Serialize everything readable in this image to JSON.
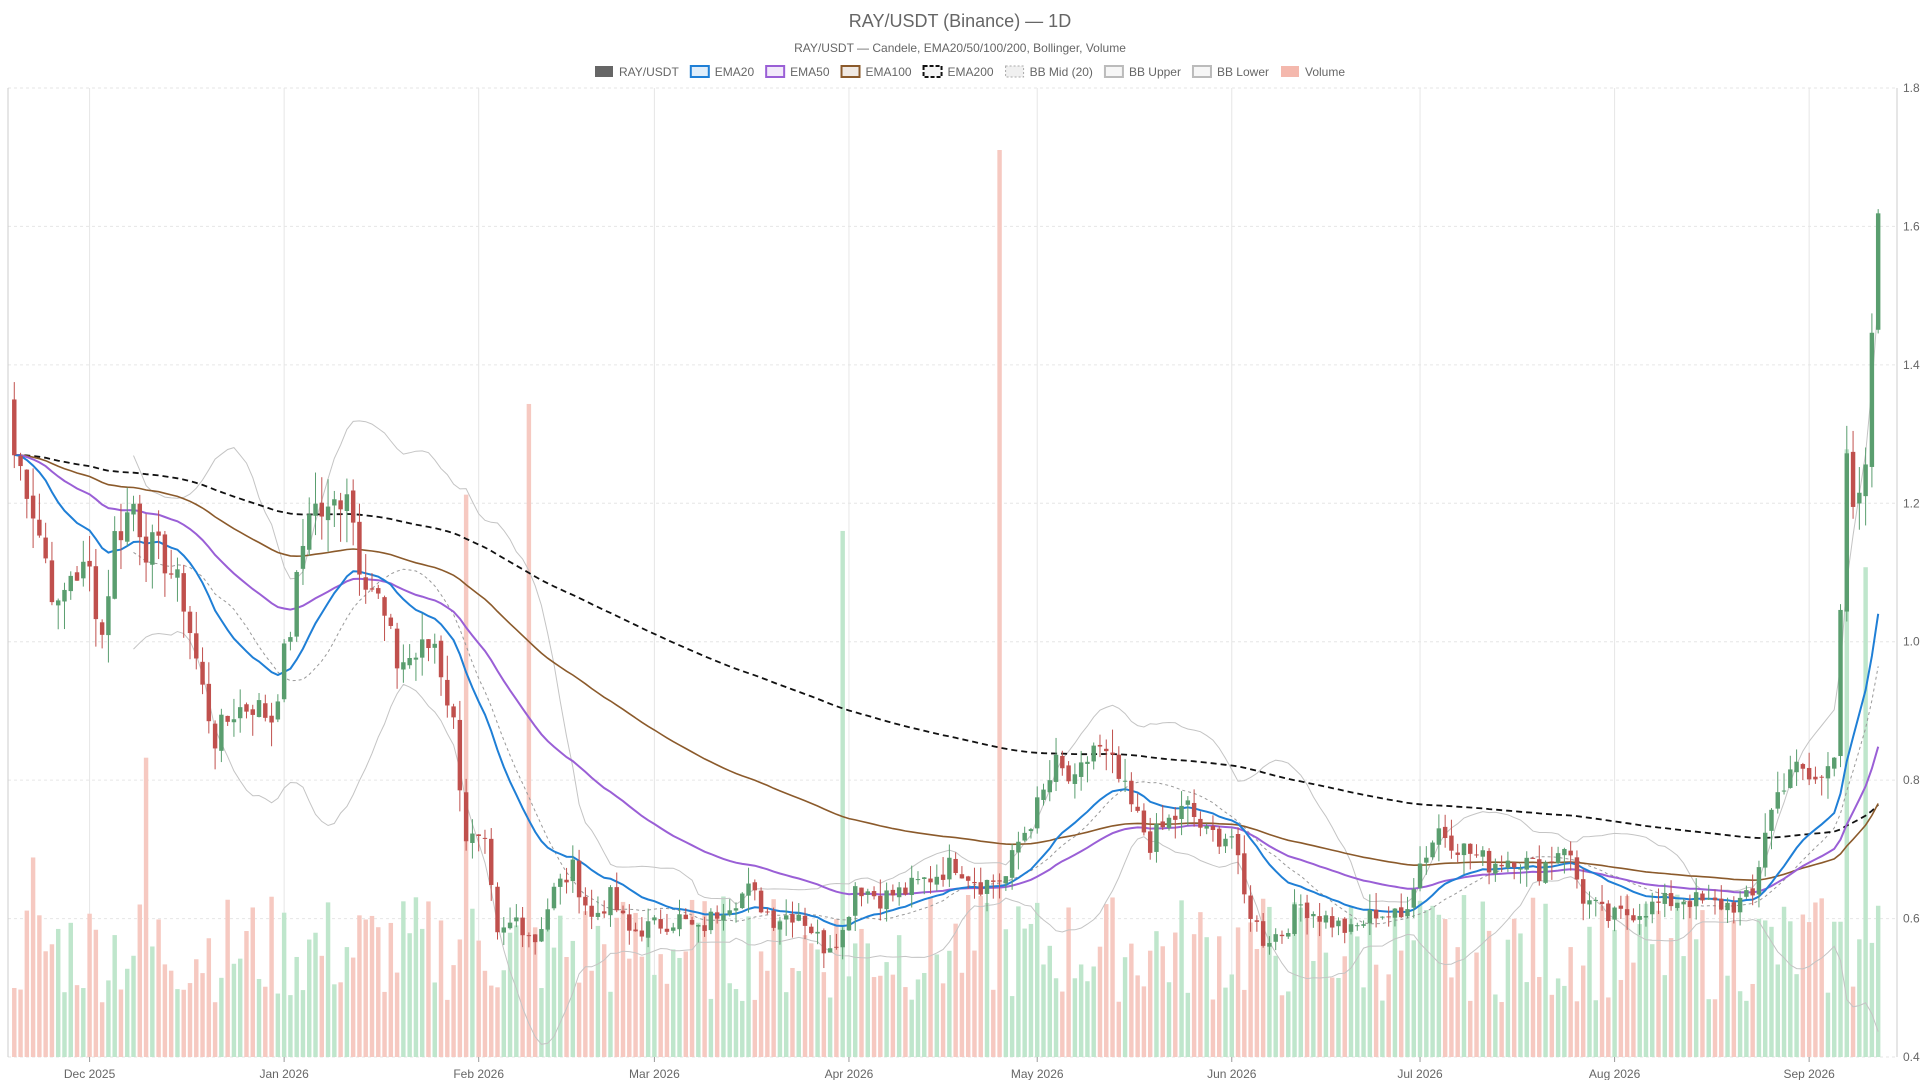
{
  "chart_data": {
    "type": "candlestick",
    "title": "RAY/USDT (Binance) — 1D",
    "subtitle": "RAY/USDT — Candele, EMA20/50/100/200, Bollinger, Volume",
    "legend": [
      {
        "label": "RAY/USDT",
        "color": "#666666",
        "style": "solid-fill"
      },
      {
        "label": "EMA20",
        "color": "#1f7fd6",
        "style": "line"
      },
      {
        "label": "EMA50",
        "color": "#9a5fd6",
        "style": "line"
      },
      {
        "label": "EMA100",
        "color": "#8b5a2b",
        "style": "line"
      },
      {
        "label": "EMA200",
        "color": "#111111",
        "style": "dashed"
      },
      {
        "label": "BB Mid (20)",
        "color": "#aaaaaa",
        "style": "dotted"
      },
      {
        "label": "BB Upper",
        "color": "#bbbbbb",
        "style": "line"
      },
      {
        "label": "BB Lower",
        "color": "#bbbbbb",
        "style": "line"
      },
      {
        "label": "Volume",
        "color": "#f4b8ad",
        "style": "bar"
      }
    ],
    "colors": {
      "up": "#5a9e6f",
      "down": "#c0504d",
      "vol_up": "#bfe6cc",
      "vol_down": "#f6c9c1"
    },
    "y_axis": {
      "min": 0.4,
      "max": 1.8,
      "ticks": [
        "0.4",
        "0.6",
        "0.8",
        "1.0",
        "1.2",
        "1.4",
        "1.6",
        "1.8"
      ],
      "position": "right"
    },
    "x_axis": {
      "start": "2025-11-18",
      "end": "2026-09-15",
      "ticks": [
        {
          "label": "Dec 2025",
          "date": "2025-12-01"
        },
        {
          "label": "Jan 2026",
          "date": "2026-01-01"
        },
        {
          "label": "Feb 2026",
          "date": "2026-02-01"
        },
        {
          "label": "Mar 2026",
          "date": "2026-03-01"
        },
        {
          "label": "Apr 2026",
          "date": "2026-04-01"
        },
        {
          "label": "May 2026",
          "date": "2026-05-01"
        },
        {
          "label": "Jun 2026",
          "date": "2026-06-01"
        },
        {
          "label": "Jul 2026",
          "date": "2026-07-01"
        },
        {
          "label": "Aug 2026",
          "date": "2026-08-01"
        },
        {
          "label": "Sep 2026",
          "date": "2026-09-01"
        }
      ]
    },
    "grid": true,
    "close_anchors": [
      [
        "2025-11-19",
        1.27
      ],
      [
        "2025-11-21",
        1.23
      ],
      [
        "2025-11-24",
        1.12
      ],
      [
        "2025-11-26",
        1.04
      ],
      [
        "2025-11-28",
        1.1
      ],
      [
        "2025-12-01",
        1.1
      ],
      [
        "2025-12-03",
        1.01
      ],
      [
        "2025-12-05",
        1.15
      ],
      [
        "2025-12-08",
        1.2
      ],
      [
        "2025-12-10",
        1.14
      ],
      [
        "2025-12-13",
        1.12
      ],
      [
        "2025-12-16",
        1.06
      ],
      [
        "2025-12-19",
        0.93
      ],
      [
        "2025-12-21",
        0.86
      ],
      [
        "2025-12-24",
        0.9
      ],
      [
        "2025-12-27",
        0.91
      ],
      [
        "2025-12-30",
        0.89
      ],
      [
        "2026-01-02",
        1.02
      ],
      [
        "2026-01-05",
        1.2
      ],
      [
        "2026-01-08",
        1.18
      ],
      [
        "2026-01-11",
        1.23
      ],
      [
        "2026-01-13",
        1.12
      ],
      [
        "2026-01-16",
        1.06
      ],
      [
        "2026-01-19",
        0.97
      ],
      [
        "2026-01-22",
        0.98
      ],
      [
        "2026-01-25",
        1.0
      ],
      [
        "2026-01-28",
        0.88
      ],
      [
        "2026-01-30",
        0.72
      ],
      [
        "2026-02-02",
        0.7
      ],
      [
        "2026-02-04",
        0.57
      ],
      [
        "2026-02-07",
        0.6
      ],
      [
        "2026-02-10",
        0.57
      ],
      [
        "2026-02-13",
        0.64
      ],
      [
        "2026-02-16",
        0.67
      ],
      [
        "2026-02-19",
        0.6
      ],
      [
        "2026-02-22",
        0.63
      ],
      [
        "2026-02-25",
        0.58
      ],
      [
        "2026-03-01",
        0.59
      ],
      [
        "2026-03-05",
        0.6
      ],
      [
        "2026-03-08",
        0.58
      ],
      [
        "2026-03-12",
        0.62
      ],
      [
        "2026-03-16",
        0.64
      ],
      [
        "2026-03-20",
        0.6
      ],
      [
        "2026-03-24",
        0.61
      ],
      [
        "2026-03-28",
        0.56
      ],
      [
        "2026-03-31",
        0.58
      ],
      [
        "2026-04-02",
        0.65
      ],
      [
        "2026-04-06",
        0.63
      ],
      [
        "2026-04-10",
        0.64
      ],
      [
        "2026-04-14",
        0.66
      ],
      [
        "2026-04-18",
        0.68
      ],
      [
        "2026-04-22",
        0.65
      ],
      [
        "2026-04-26",
        0.66
      ],
      [
        "2026-04-28",
        0.71
      ],
      [
        "2026-05-01",
        0.76
      ],
      [
        "2026-05-04",
        0.82
      ],
      [
        "2026-05-07",
        0.79
      ],
      [
        "2026-05-10",
        0.85
      ],
      [
        "2026-05-13",
        0.82
      ],
      [
        "2026-05-16",
        0.76
      ],
      [
        "2026-05-19",
        0.71
      ],
      [
        "2026-05-22",
        0.74
      ],
      [
        "2026-05-25",
        0.76
      ],
      [
        "2026-05-28",
        0.72
      ],
      [
        "2026-06-01",
        0.72
      ],
      [
        "2026-06-03",
        0.63
      ],
      [
        "2026-06-06",
        0.57
      ],
      [
        "2026-06-09",
        0.58
      ],
      [
        "2026-06-12",
        0.62
      ],
      [
        "2026-06-16",
        0.6
      ],
      [
        "2026-06-20",
        0.58
      ],
      [
        "2026-06-24",
        0.61
      ],
      [
        "2026-06-28",
        0.6
      ],
      [
        "2026-07-01",
        0.68
      ],
      [
        "2026-07-04",
        0.73
      ],
      [
        "2026-07-08",
        0.7
      ],
      [
        "2026-07-12",
        0.68
      ],
      [
        "2026-07-16",
        0.69
      ],
      [
        "2026-07-20",
        0.67
      ],
      [
        "2026-07-24",
        0.71
      ],
      [
        "2026-07-27",
        0.63
      ],
      [
        "2026-07-31",
        0.6
      ],
      [
        "2026-08-04",
        0.61
      ],
      [
        "2026-08-08",
        0.62
      ],
      [
        "2026-08-12",
        0.63
      ],
      [
        "2026-08-16",
        0.62
      ],
      [
        "2026-08-20",
        0.62
      ],
      [
        "2026-08-23",
        0.63
      ],
      [
        "2026-08-25",
        0.73
      ],
      [
        "2026-08-27",
        0.78
      ],
      [
        "2026-08-29",
        0.82
      ],
      [
        "2026-09-01",
        0.8
      ],
      [
        "2026-09-03",
        0.8
      ],
      [
        "2026-09-05",
        0.85
      ],
      [
        "2026-09-07",
        1.28
      ],
      [
        "2026-09-08",
        1.17
      ],
      [
        "2026-09-10",
        1.23
      ],
      [
        "2026-09-11",
        1.45
      ],
      [
        "2026-09-12",
        1.59
      ]
    ],
    "volume_spikes": [
      [
        "2025-11-22",
        0.22
      ],
      [
        "2025-12-10",
        0.33
      ],
      [
        "2026-01-30",
        0.62
      ],
      [
        "2026-02-09",
        0.72
      ],
      [
        "2026-03-31",
        0.58
      ],
      [
        "2026-04-25",
        1.0
      ],
      [
        "2026-09-07",
        0.67
      ],
      [
        "2026-09-10",
        0.54
      ]
    ]
  }
}
